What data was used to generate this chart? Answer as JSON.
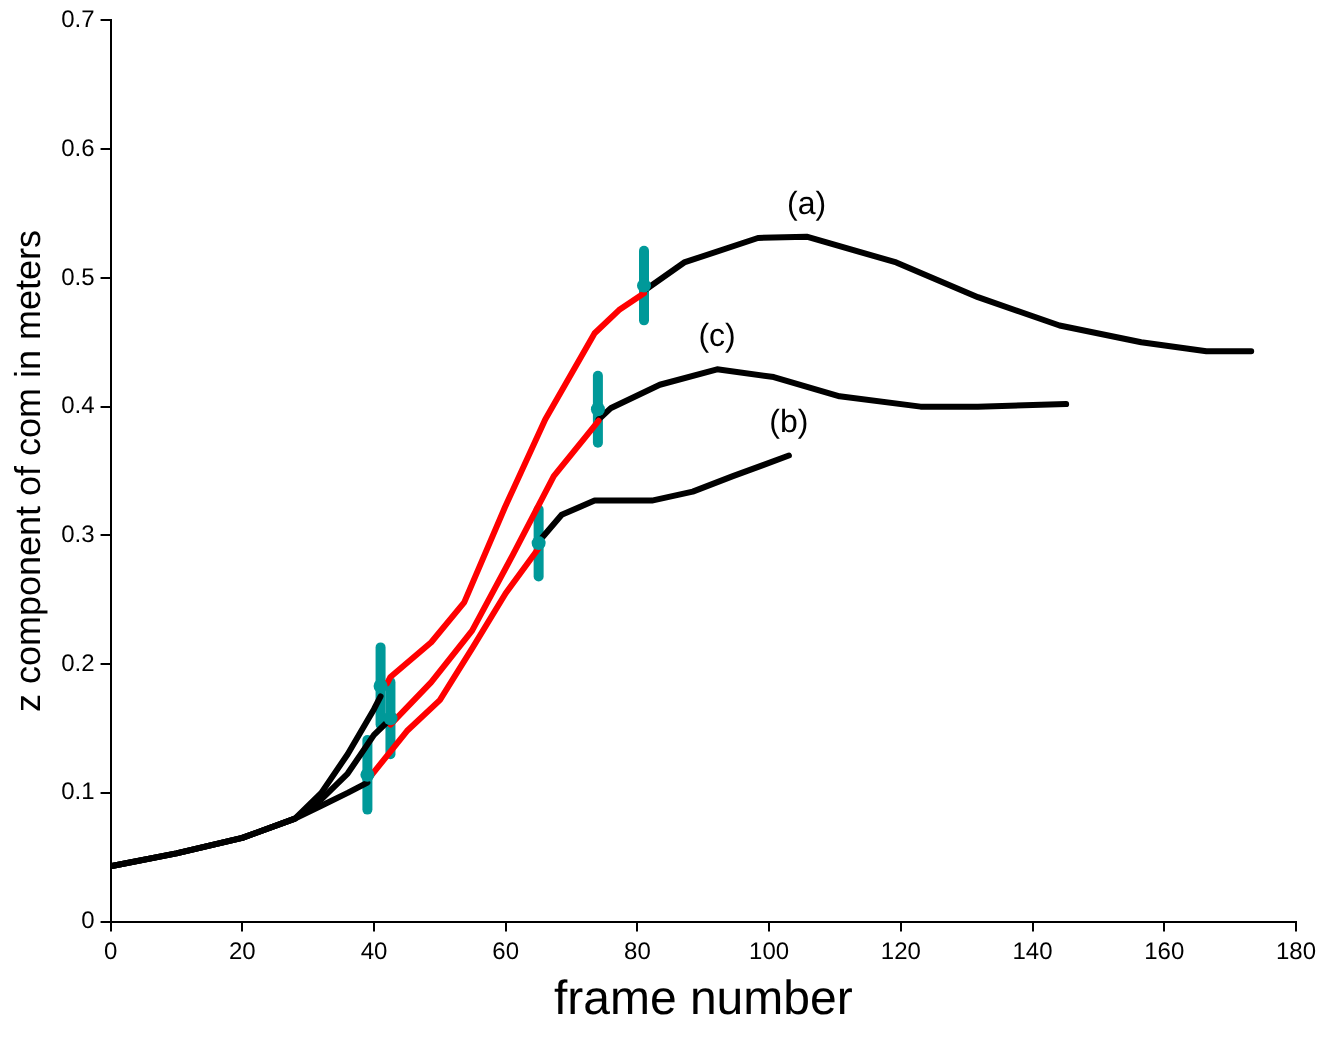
{
  "chart_data": {
    "type": "line",
    "xlabel": "frame number",
    "ylabel": "z component of com in meters",
    "xlim": [
      0,
      180
    ],
    "xticks": [
      0,
      20,
      40,
      60,
      80,
      100,
      120,
      140,
      160,
      180
    ],
    "ylim": [
      0,
      0.7
    ],
    "yticks": [
      0,
      0.1,
      0.2,
      0.3,
      0.4,
      0.5,
      0.6,
      0.7
    ],
    "grid": false,
    "legend": false,
    "marker": "none",
    "line_style": "solid",
    "series": [
      {
        "color": "#000000",
        "x": [
          0,
          10,
          20,
          28,
          32,
          36,
          40,
          41
        ],
        "values": [
          0.043,
          0.053,
          0.065,
          0.08,
          0.1,
          0.13,
          0.165,
          0.175
        ]
      },
      {
        "color": "#ff0000",
        "x": [
          42,
          42.5,
          48.7,
          53.7,
          59.9,
          66,
          73.5,
          77.2,
          81
        ],
        "values": [
          0.185,
          0.19,
          0.217,
          0.248,
          0.322,
          0.39,
          0.457,
          0.475,
          0.488
        ]
      },
      {
        "name": "(a)",
        "color": "#000000",
        "x": [
          81,
          87.1,
          98.3,
          105.7,
          119.3,
          131.7,
          144.1,
          156.5,
          166.4,
          173.2
        ],
        "values": [
          0.49,
          0.512,
          0.531,
          0.532,
          0.512,
          0.485,
          0.463,
          0.45,
          0.443,
          0.443
        ]
      },
      {
        "color": "#000000",
        "x": [
          0,
          10,
          20,
          28,
          32,
          36,
          40,
          42
        ],
        "values": [
          0.043,
          0.053,
          0.065,
          0.08,
          0.095,
          0.115,
          0.145,
          0.155
        ]
      },
      {
        "color": "#ff0000",
        "x": [
          42.5,
          48.7,
          54.9,
          61.1,
          67.3,
          74.1
        ],
        "values": [
          0.153,
          0.186,
          0.226,
          0.285,
          0.346,
          0.389
        ]
      },
      {
        "name": "(c)",
        "color": "#000000",
        "x": [
          74.1,
          76,
          83.4,
          92.1,
          100.7,
          110.7,
          123,
          131.7,
          145.1
        ],
        "values": [
          0.39,
          0.399,
          0.417,
          0.429,
          0.423,
          0.408,
          0.4,
          0.4,
          0.402
        ]
      },
      {
        "color": "#000000",
        "x": [
          0,
          10,
          20,
          28,
          32,
          36,
          39
        ],
        "values": [
          0.043,
          0.053,
          0.065,
          0.08,
          0.09,
          0.1,
          0.108
        ]
      },
      {
        "color": "#ff0000",
        "x": [
          39.5,
          45,
          50,
          55,
          60,
          65
        ],
        "values": [
          0.113,
          0.148,
          0.172,
          0.213,
          0.255,
          0.29
        ]
      },
      {
        "name": "(b)",
        "color": "#000000",
        "x": [
          65,
          68.5,
          73.5,
          82.2,
          88.4,
          94.5,
          103
        ],
        "values": [
          0.295,
          0.316,
          0.327,
          0.327,
          0.334,
          0.346,
          0.362
        ]
      },
      {
        "type": "scatter",
        "color": "#009999",
        "marker": "circle",
        "x": [
          41,
          42.5,
          39,
          81,
          74,
          65
        ],
        "values": [
          0.183,
          0.158,
          0.114,
          0.494,
          0.398,
          0.294
        ],
        "errors": [
          0.03,
          0.028,
          0.027,
          0.027,
          0.026,
          0.026
        ]
      }
    ]
  }
}
